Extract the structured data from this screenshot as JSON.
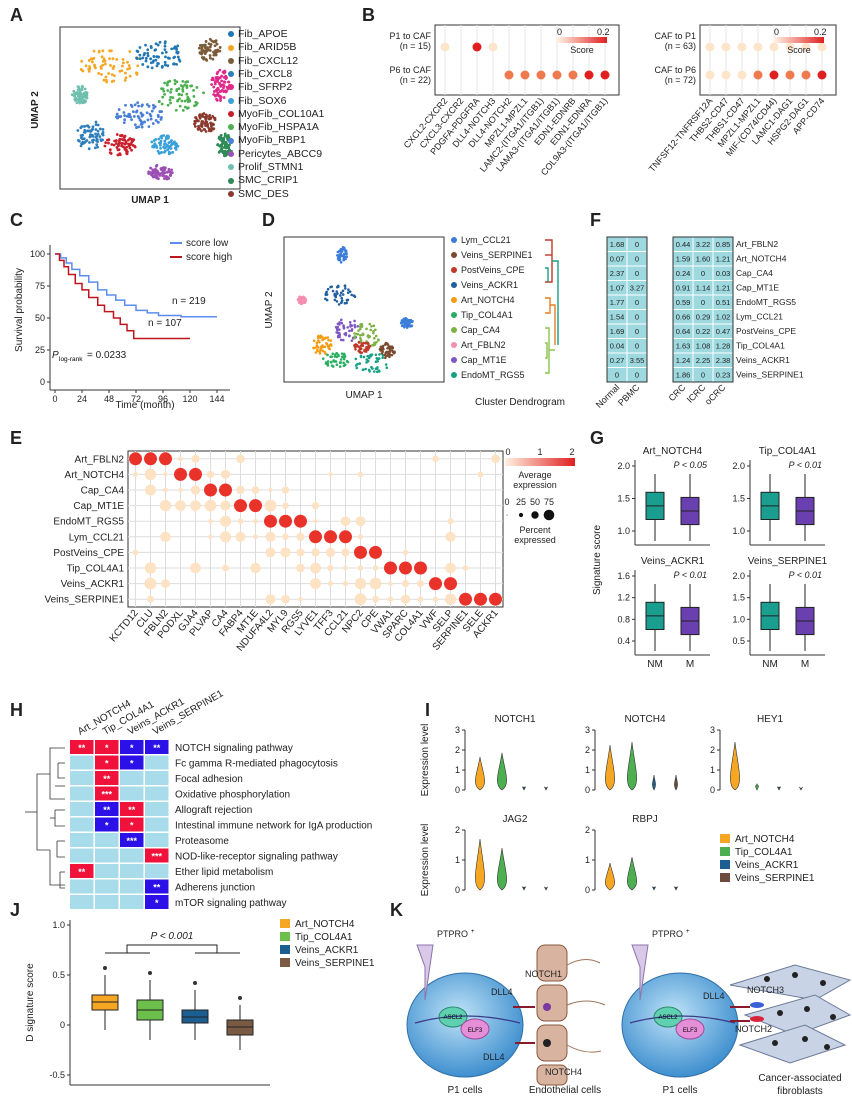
{
  "panels": {
    "A": {
      "label": "A",
      "xlabel": "UMAP 1",
      "ylabel": "UMAP 2",
      "legend": [
        {
          "name": "Fib_APOE",
          "color": "#1f77b4"
        },
        {
          "name": "Fib_ARID5B",
          "color": "#f5a623"
        },
        {
          "name": "Fib_CXCL12",
          "color": "#7a5c3a"
        },
        {
          "name": "Fib_CXCL8",
          "color": "#2f7ebc"
        },
        {
          "name": "Fib_SFRP2",
          "color": "#e0298a"
        },
        {
          "name": "Fib_SOX6",
          "color": "#3aa0d8"
        },
        {
          "name": "MyoFib_COL10A1",
          "color": "#c91f2b"
        },
        {
          "name": "MyoFib_HSPA1A",
          "color": "#4caf50"
        },
        {
          "name": "MyoFib_RBP1",
          "color": "#4a7fd6"
        },
        {
          "name": "Pericytes_ABCC9",
          "color": "#9c4fb5"
        },
        {
          "name": "Prolif_STMN1",
          "color": "#6fbfae"
        },
        {
          "name": "SMC_CRIP1",
          "color": "#2e8b57"
        },
        {
          "name": "SMC_DES",
          "color": "#8b3a2e"
        }
      ]
    },
    "B": {
      "label": "B",
      "left_rows": [
        "P1 to CAF",
        "(n = 15)",
        "P6 to CAF",
        "(n = 22)"
      ],
      "left_cols": [
        "CXCL2-CXCR2",
        "CXCL3-CXCR2",
        "PDGFA-PDGFRA",
        "DLL4-NOTCH3",
        "DLL4-NOTCH2",
        "MPZL1-MPZL1",
        "LAMC2-(ITGA1/ITGB1)",
        "LAMA3-(ITGA1/ITGB1)",
        "EDN1-EDNRB",
        "EDN1-EDNRA",
        "COL9A3-(ITGA1/ITGB1)"
      ],
      "right_rows": [
        "CAF to P1",
        "(n = 63)",
        "CAF to P6",
        "(n = 72)"
      ],
      "right_cols": [
        "TNFSF12-TNFRSF12A",
        "THBS2-CD47",
        "THBS1-CD47",
        "MPZL1-MPZL1",
        "MIF-(CD74/CD44)",
        "LAMC1-DAG1",
        "HSPG2-DAG1",
        "APP-CD74"
      ],
      "score_label": "Score",
      "score_min": "0",
      "score_max": "0.2"
    },
    "C": {
      "label": "C",
      "xlabel": "Time (month)",
      "ylabel": "Survival probability",
      "xticks": [
        "0",
        "24",
        "48",
        "72",
        "96",
        "120",
        "144"
      ],
      "yticks": [
        "0",
        "25",
        "50",
        "75",
        "100"
      ],
      "legend_low": "score low",
      "legend_high": "score high",
      "n_low": "n = 219",
      "n_high": "n = 107",
      "p_text": "P",
      "p_sub": "log-rank",
      "p_value": " = 0.0233"
    },
    "D": {
      "label": "D",
      "xlabel": "UMAP 1",
      "ylabel": "UMAP 2",
      "dendro_label": "Cluster Dendrogram",
      "legend": [
        {
          "name": "Lym_CCL21",
          "color": "#3b7dd8"
        },
        {
          "name": "Veins_SERPINE1",
          "color": "#7b4a2e"
        },
        {
          "name": "PostVeins_CPE",
          "color": "#c0392b"
        },
        {
          "name": "Veins_ACKR1",
          "color": "#1f5fa0"
        },
        {
          "name": "Art_NOTCH4",
          "color": "#f39c12"
        },
        {
          "name": "Tip_COL4A1",
          "color": "#27ae60"
        },
        {
          "name": "Cap_CA4",
          "color": "#7cb342"
        },
        {
          "name": "Art_FBLN2",
          "color": "#f48fb1"
        },
        {
          "name": "Cap_MT1E",
          "color": "#7e57c2"
        },
        {
          "name": "EndoMT_RGS5",
          "color": "#16a085"
        }
      ]
    },
    "E": {
      "label": "E",
      "rows": [
        "Art_FBLN2",
        "Art_NOTCH4",
        "Cap_CA4",
        "Cap_MT1E",
        "EndoMT_RGS5",
        "Lym_CCL21",
        "PostVeins_CPE",
        "Tip_COL4A1",
        "Veins_ACKR1",
        "Veins_SERPINE1"
      ],
      "cols": [
        "KCTD12",
        "CLU",
        "FBLN2",
        "PODXL",
        "GJA4",
        "PLVAP",
        "CA4",
        "FABP4",
        "MT1E",
        "NDUFA4L2",
        "MYL9",
        "RGS5",
        "LYVE1",
        "TFF3",
        "CCL21",
        "NPC2",
        "CPE",
        "VWA1",
        "SPARC",
        "COL4A1",
        "VWF",
        "SELP",
        "SERPINE1",
        "SELE",
        "ACKR1"
      ],
      "avg_title": "Average",
      "avg_title2": "expression",
      "avg_ticks": [
        "0",
        "1",
        "2"
      ],
      "pct_ticks": [
        "0",
        "25",
        "50",
        "75"
      ],
      "pct_title": "Percent",
      "pct_title2": "expressed"
    },
    "F": {
      "label": "F",
      "rows": [
        "Art_FBLN2",
        "Art_NOTCH4",
        "Cap_CA4",
        "Cap_MT1E",
        "EndoMT_RGS5",
        "Lym_CCL21",
        "PostVeins_CPE",
        "Tip_COL4A1",
        "Veins_ACKR1",
        "Veins_SERPINE1"
      ],
      "cols_left": [
        "Normal",
        "PBMC"
      ],
      "cols_right": [
        "CRC",
        "lCRC",
        "oCRC"
      ],
      "left_values": [
        [
          "1.68",
          "0"
        ],
        [
          "0.07",
          "0"
        ],
        [
          "2.37",
          "0"
        ],
        [
          "1.07",
          "3.27"
        ],
        [
          "1.77",
          "0"
        ],
        [
          "1.54",
          "0"
        ],
        [
          "1.69",
          "0"
        ],
        [
          "0.04",
          "0"
        ],
        [
          "0.27",
          "3.55"
        ],
        [
          "0",
          "0"
        ]
      ],
      "right_values": [
        [
          "0.44",
          "3.22",
          "0.85"
        ],
        [
          "1.59",
          "1.60",
          "1.21"
        ],
        [
          "0.24",
          "0",
          "0.03"
        ],
        [
          "0.91",
          "1.14",
          "1.21"
        ],
        [
          "0.59",
          "0",
          "0.51"
        ],
        [
          "0.66",
          "0.29",
          "1.02"
        ],
        [
          "0.64",
          "0.22",
          "0.47"
        ],
        [
          "1.63",
          "1.08",
          "1.28"
        ],
        [
          "1.24",
          "2.25",
          "2.38"
        ],
        [
          "1.86",
          "0",
          "0.23"
        ]
      ]
    },
    "G": {
      "label": "G",
      "ylabel": "Signature score",
      "groups": [
        "NM",
        "M"
      ],
      "plots": [
        {
          "title": "Art_NOTCH4",
          "p": "P < 0.05",
          "yticks": [
            "1.0",
            "1.5",
            "2.0"
          ]
        },
        {
          "title": "Tip_COL4A1",
          "p": "P < 0.01",
          "yticks": [
            "1.0",
            "1.5",
            "2.0"
          ]
        },
        {
          "title": "Veins_ACKR1",
          "p": "P < 0.01",
          "yticks": [
            "0.4",
            "0.8",
            "1.2",
            "1.6"
          ]
        },
        {
          "title": "Veins_SERPINE1",
          "p": "P < 0.01",
          "yticks": [
            "0.5",
            "1.0",
            "1.5",
            "2.0"
          ]
        }
      ]
    },
    "H": {
      "label": "H",
      "cols": [
        "Art_NOTCH4",
        "Tip_COL4A1",
        "Veins_ACKR1",
        "Veins_SERPINE1"
      ],
      "rows": [
        {
          "name": "NOTCH signaling pathway",
          "cells": [
            "**",
            "*",
            "*",
            "**"
          ],
          "colors": [
            "r",
            "r",
            "b",
            "b"
          ]
        },
        {
          "name": "Fc gamma R-mediated phagocytosis",
          "cells": [
            "",
            "*",
            "*",
            ""
          ],
          "colors": [
            "",
            "r",
            "b",
            ""
          ]
        },
        {
          "name": "Focal adhesion",
          "cells": [
            "",
            "**",
            "",
            ""
          ],
          "colors": [
            "",
            "r",
            "",
            ""
          ]
        },
        {
          "name": "Oxidative phosphorylation",
          "cells": [
            "",
            "***",
            "",
            ""
          ],
          "colors": [
            "",
            "r",
            "",
            ""
          ]
        },
        {
          "name": "Allograft rejection",
          "cells": [
            "",
            "**",
            "**",
            ""
          ],
          "colors": [
            "",
            "b",
            "r",
            ""
          ]
        },
        {
          "name": "Intestinal immune network for IgA production",
          "cells": [
            "",
            "*",
            "*",
            ""
          ],
          "colors": [
            "",
            "b",
            "r",
            ""
          ]
        },
        {
          "name": "Proteasome",
          "cells": [
            "",
            "",
            "***",
            ""
          ],
          "colors": [
            "",
            "",
            "b",
            ""
          ]
        },
        {
          "name": "NOD-like-receptor signaling pathway",
          "cells": [
            "",
            "",
            "",
            "***"
          ],
          "colors": [
            "",
            "",
            "",
            "r"
          ]
        },
        {
          "name": "Ether lipid metabolism",
          "cells": [
            "**",
            "",
            "",
            ""
          ],
          "colors": [
            "r",
            "",
            "",
            ""
          ]
        },
        {
          "name": "Adherens junction",
          "cells": [
            "",
            "",
            "",
            "**"
          ],
          "colors": [
            "",
            "",
            "",
            "b"
          ]
        },
        {
          "name": "mTOR signaling pathway",
          "cells": [
            "",
            "",
            "",
            "*"
          ],
          "colors": [
            "",
            "",
            "",
            "b"
          ]
        }
      ]
    },
    "I": {
      "label": "I",
      "ylabel": "Expression level",
      "genes": [
        {
          "name": "NOTCH1",
          "yticks": [
            "0",
            "1",
            "2",
            "3"
          ],
          "levels": [
            0.55,
            0.62,
            0.05,
            0.04
          ]
        },
        {
          "name": "NOTCH4",
          "yticks": [
            "0",
            "1",
            "2",
            "3"
          ],
          "levels": [
            0.75,
            0.8,
            0.25,
            0.25
          ]
        },
        {
          "name": "HEY1",
          "yticks": [
            "0",
            "1",
            "2",
            "3"
          ],
          "levels": [
            0.8,
            0.1,
            0.05,
            0.03
          ]
        },
        {
          "name": "JAG2",
          "yticks": [
            "0",
            "1",
            "2"
          ],
          "levels": [
            0.85,
            0.7,
            0.05,
            0.04
          ]
        },
        {
          "name": "RBPJ",
          "yticks": [
            "0",
            "1",
            "2"
          ],
          "levels": [
            0.45,
            0.55,
            0.05,
            0.05
          ]
        }
      ],
      "legend": [
        {
          "name": "Art_NOTCH4",
          "color": "#f5a623"
        },
        {
          "name": "Tip_COL4A1",
          "color": "#4caf50"
        },
        {
          "name": "Veins_ACKR1",
          "color": "#1b5e8f"
        },
        {
          "name": "Veins_SERPINE1",
          "color": "#6d4c3d"
        }
      ]
    },
    "J": {
      "label": "J",
      "ylabel": "D signature score",
      "yticks": [
        "-0.5",
        "0",
        "0.5",
        "1.0"
      ],
      "p": "P < 0.001",
      "legend": [
        {
          "name": "Art_NOTCH4",
          "color": "#f5a623"
        },
        {
          "name": "Tip_COL4A1",
          "color": "#6dbf4b"
        },
        {
          "name": "Veins_ACKR1",
          "color": "#1b5e8f"
        },
        {
          "name": "Veins_SERPINE1",
          "color": "#7b5a44"
        }
      ]
    },
    "K": {
      "label": "K",
      "left_cell": "P1 cells",
      "right_cell": "P1 cells",
      "endo": "Endothelial cells",
      "caf1": "Cancer-associated",
      "caf2": "fibroblasts",
      "ptpro": "PTPRO",
      "ptpro_sup": "+",
      "ascl2": "ASCL2",
      "elf3": "ELF3",
      "notch1": "NOTCH1",
      "notch3": "NOTCH3",
      "notch2": "NOTCH2",
      "notch4": "NOTCH4",
      "dll4": "DLL4"
    }
  }
}
